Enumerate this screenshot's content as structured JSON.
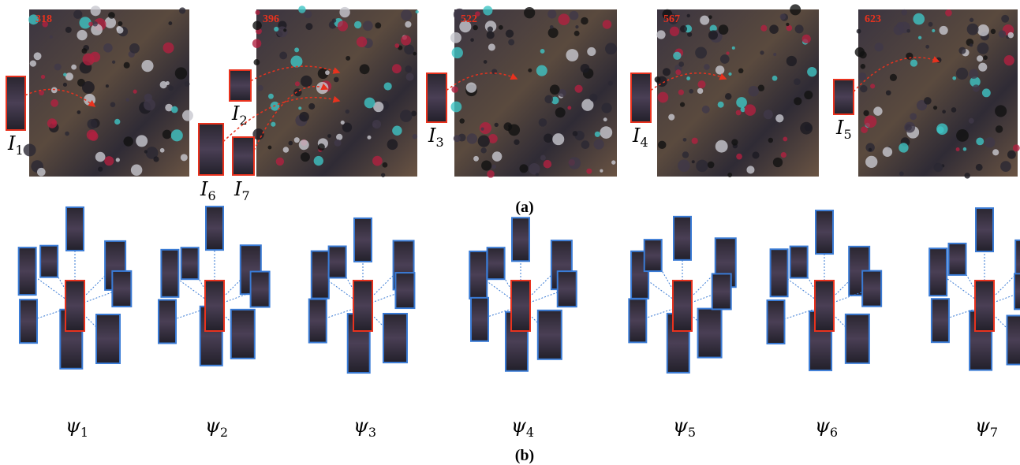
{
  "panel_a": {
    "frames": [
      {
        "number": "318"
      },
      {
        "number": "396"
      },
      {
        "number": "522"
      },
      {
        "number": "567"
      },
      {
        "number": "623"
      }
    ],
    "crop_labels": [
      {
        "symbol": "I",
        "subscript": "1"
      },
      {
        "symbol": "I",
        "subscript": "2"
      },
      {
        "symbol": "I",
        "subscript": "3"
      },
      {
        "symbol": "I",
        "subscript": "4"
      },
      {
        "symbol": "I",
        "subscript": "5"
      },
      {
        "symbol": "I",
        "subscript": "6"
      },
      {
        "symbol": "I",
        "subscript": "7"
      }
    ],
    "caption": "(a)"
  },
  "panel_b": {
    "groups": [
      {
        "symbol": "ψ",
        "subscript": "1"
      },
      {
        "symbol": "ψ",
        "subscript": "2"
      },
      {
        "symbol": "ψ",
        "subscript": "3"
      },
      {
        "symbol": "ψ",
        "subscript": "4"
      },
      {
        "symbol": "ψ",
        "subscript": "5"
      },
      {
        "symbol": "ψ",
        "subscript": "6"
      },
      {
        "symbol": "ψ",
        "subscript": "7"
      }
    ],
    "caption": "(b)"
  }
}
